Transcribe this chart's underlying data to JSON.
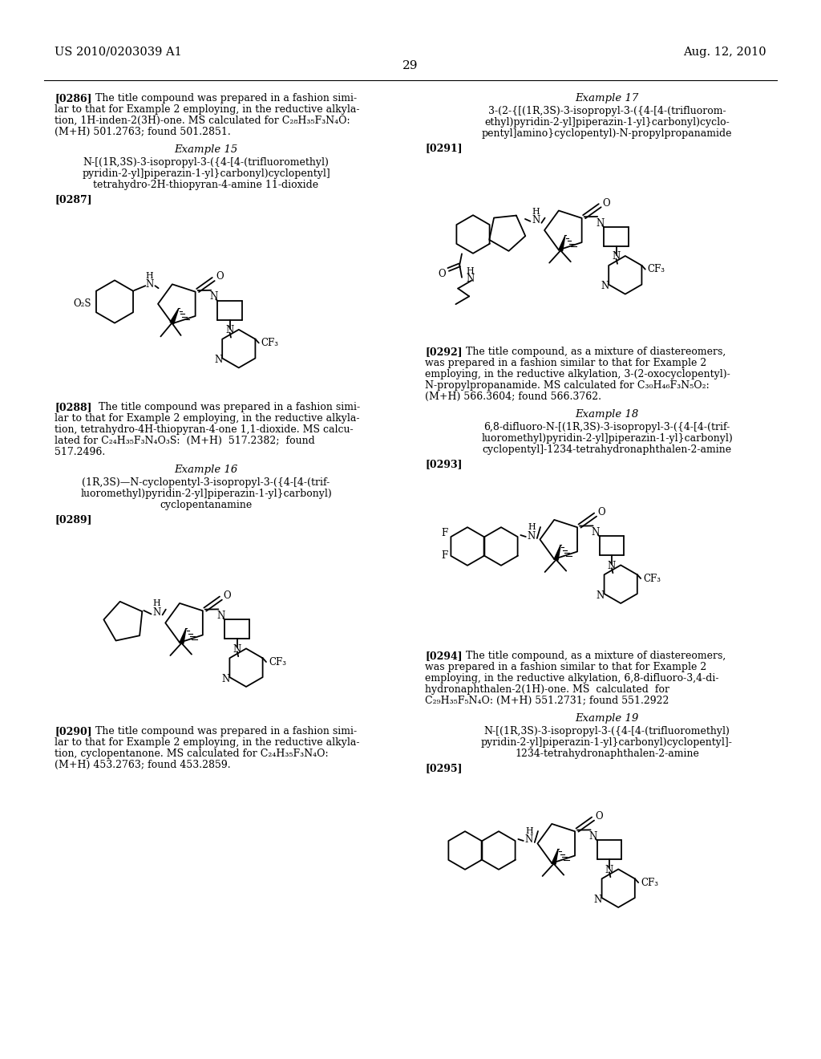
{
  "page_number": "29",
  "header_left": "US 2010/0203039 A1",
  "header_right": "Aug. 12, 2010",
  "bg": "#ffffff"
}
